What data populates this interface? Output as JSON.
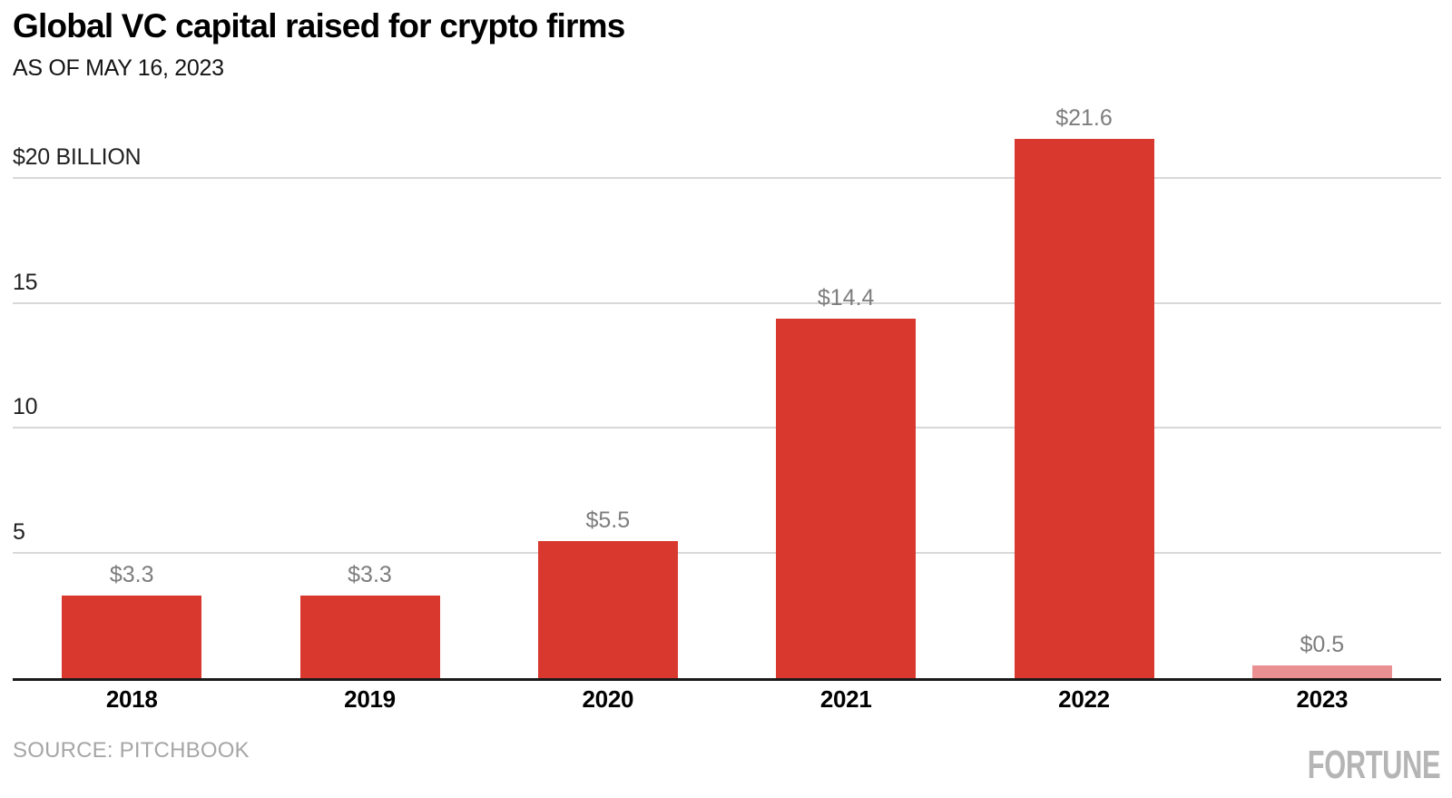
{
  "header": {
    "title": "Global VC capital raised for crypto firms",
    "subtitle": "AS OF MAY 16, 2023"
  },
  "footer": {
    "source": "SOURCE: PITCHBOOK",
    "brand": "FORTUNE"
  },
  "colors": {
    "bar_red": "#d9382f",
    "bar_pink_current_year": "#ea8f92",
    "gridline": "#d8d8d8",
    "axis_line": "#1a1a1a",
    "ytick_label": "#212121",
    "data_label": "#7d7d7d",
    "xtick_label": "#000000",
    "source_text": "#a6a6a6",
    "brand_text": "#b5b5b5"
  },
  "chart_data": {
    "type": "bar",
    "title": "Global VC capital raised for crypto firms",
    "subtitle": "AS OF MAY 16, 2023",
    "categories": [
      "2018",
      "2019",
      "2020",
      "2021",
      "2022",
      "2023"
    ],
    "values": [
      3.3,
      3.3,
      5.5,
      14.4,
      21.6,
      0.5
    ],
    "data_labels": [
      "$3.3",
      "$3.3",
      "$5.5",
      "$14.4",
      "$21.6",
      "$0.5"
    ],
    "bar_color_keys": [
      "bar_red",
      "bar_red",
      "bar_red",
      "bar_red",
      "bar_red",
      "bar_pink_current_year"
    ],
    "unit": "billion USD",
    "xlabel": "",
    "ylabel": "",
    "ylim": [
      0,
      22.5
    ],
    "yticks": [
      {
        "value": 20,
        "label": "$20 BILLION"
      },
      {
        "value": 15,
        "label": "15"
      },
      {
        "value": 10,
        "label": "10"
      },
      {
        "value": 5,
        "label": "5"
      }
    ],
    "grid": "horizontal",
    "legend": "none"
  }
}
